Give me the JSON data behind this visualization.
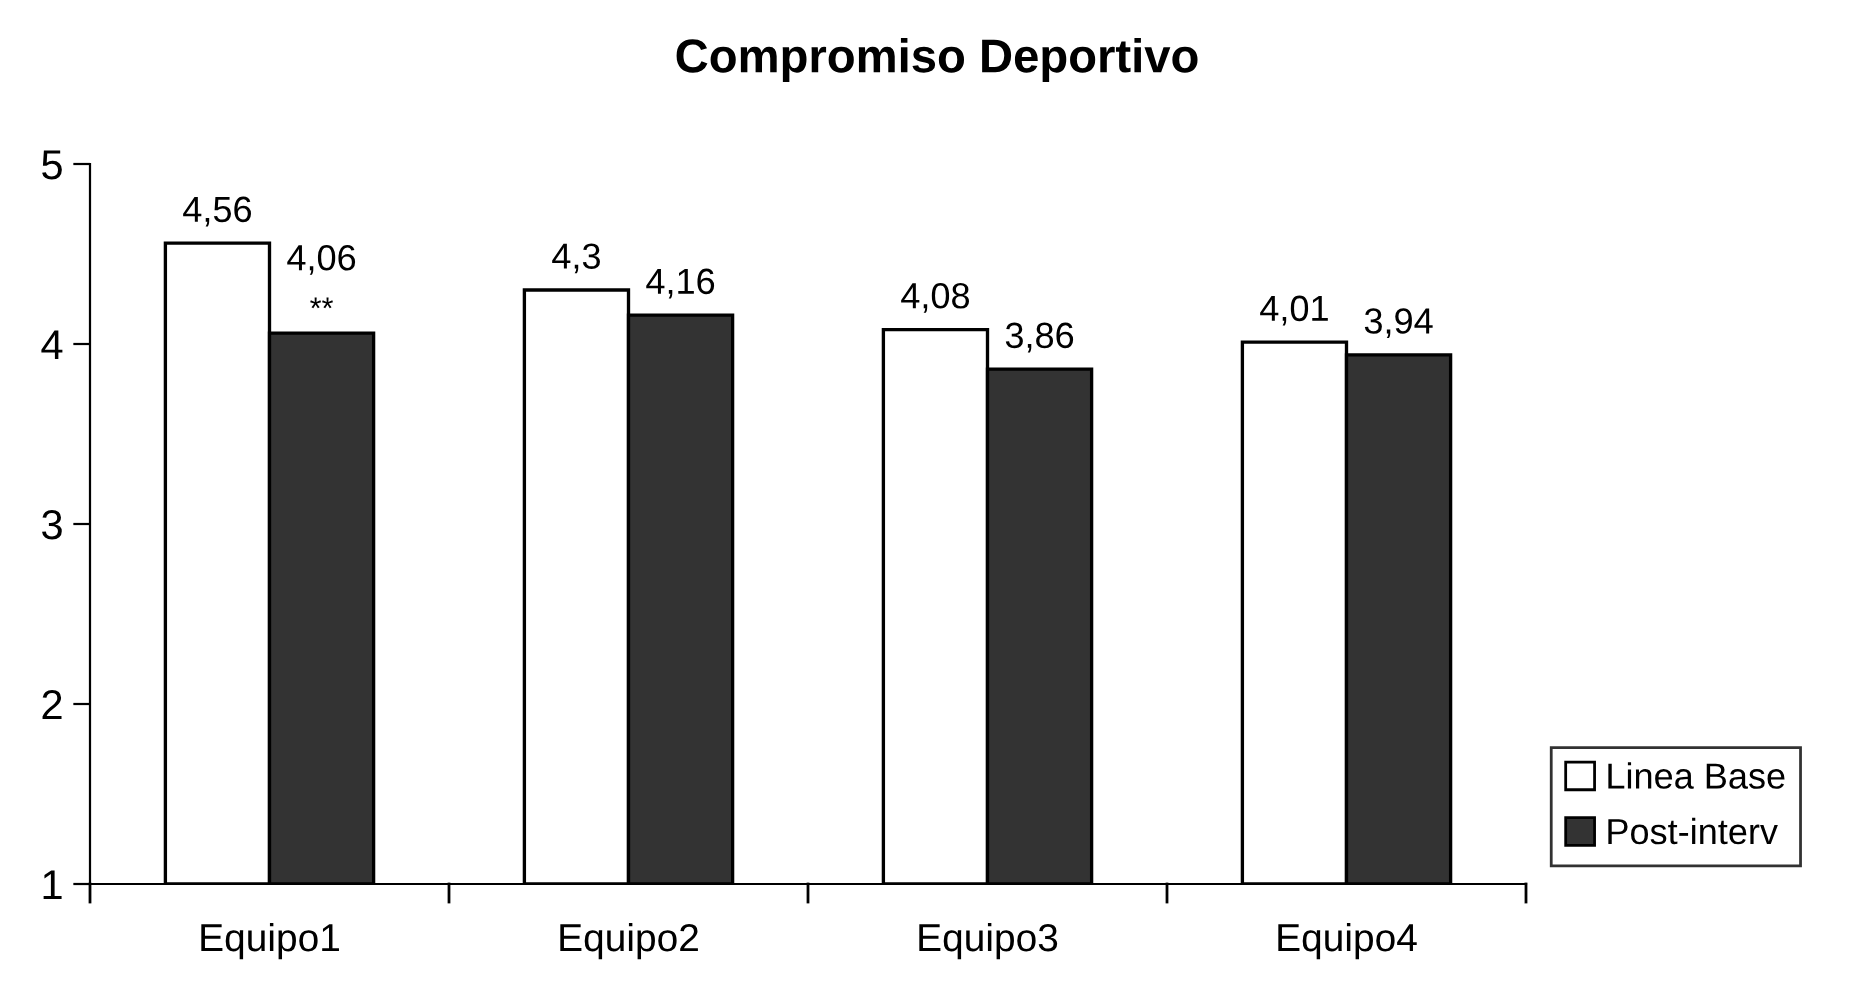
{
  "chart_data": {
    "type": "bar",
    "title": "Compromiso Deportivo",
    "categories": [
      "Equipo1",
      "Equipo2",
      "Equipo3",
      "Equipo4"
    ],
    "series": [
      {
        "name": "Linea Base",
        "color": "#ffffff",
        "values": [
          4.56,
          4.3,
          4.08,
          4.01
        ],
        "value_labels": [
          "4,56",
          "4,3",
          "4,08",
          "4,01"
        ]
      },
      {
        "name": "Post-interv",
        "color": "#333333",
        "values": [
          4.06,
          4.16,
          3.86,
          3.94
        ],
        "value_labels": [
          "4,06",
          "4,16",
          "3,86",
          "3,94"
        ]
      }
    ],
    "annotations": [
      {
        "text": "**",
        "x": "Equipo1",
        "y": 4.06
      }
    ],
    "ylim": [
      1,
      5
    ],
    "yticks": [
      1,
      2,
      3,
      4,
      5
    ],
    "grid": false,
    "legend": "bottom right"
  }
}
